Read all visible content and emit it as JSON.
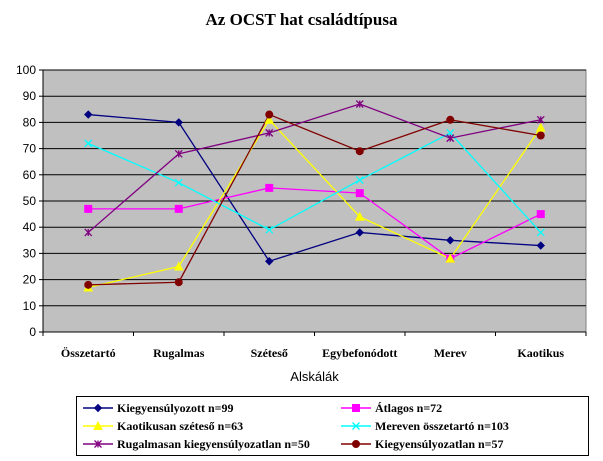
{
  "chart_data": {
    "type": "line",
    "title": "Az OCST hat családtípusa",
    "xlabel": "Alskálák",
    "ylabel": "",
    "ylim": [
      0,
      100
    ],
    "yticks": [
      0,
      10,
      20,
      30,
      40,
      50,
      60,
      70,
      80,
      90,
      100
    ],
    "grid": true,
    "plot_background": "#c0c0c0",
    "legend_position": "bottom",
    "categories": [
      "Összetartó",
      "Rugalmas",
      "Széteső",
      "Egybefonódott",
      "Merev",
      "Kaotikus"
    ],
    "series": [
      {
        "name": "Kiegyensúlyozott n=99",
        "color": "#000080",
        "marker": "diamond",
        "values": [
          83,
          80,
          27,
          38,
          35,
          33
        ]
      },
      {
        "name": "Átlagos n=72",
        "color": "#ff00ff",
        "marker": "square",
        "values": [
          47,
          47,
          55,
          53,
          28,
          45
        ]
      },
      {
        "name": "Kaotikusan széteső n=63",
        "color": "#ffff00",
        "marker": "triangle",
        "values": [
          17,
          25,
          81,
          44,
          28,
          78
        ]
      },
      {
        "name": "Mereven összetartó n=103",
        "color": "#00ffff",
        "marker": "x",
        "values": [
          72,
          57,
          39,
          58,
          76,
          38
        ]
      },
      {
        "name": "Rugalmasan kiegyensúlyozatlan n=50",
        "color": "#800080",
        "marker": "star",
        "values": [
          38,
          68,
          76,
          87,
          74,
          81
        ]
      },
      {
        "name": "Kiegyensúlyozatlan n=57",
        "color": "#800000",
        "marker": "circle",
        "values": [
          18,
          19,
          83,
          69,
          81,
          75
        ]
      }
    ]
  }
}
